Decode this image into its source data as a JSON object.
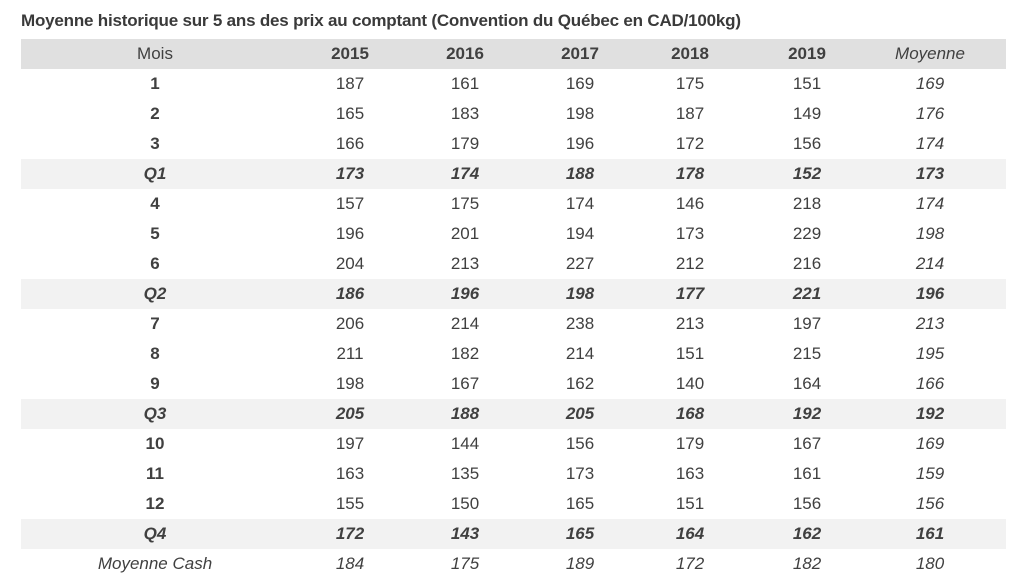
{
  "title": "Moyenne historique sur 5 ans des prix au comptant (Convention du Québec en CAD/100kg)",
  "table": {
    "headers": [
      "Mois",
      "2015",
      "2016",
      "2017",
      "2018",
      "2019",
      "Moyenne"
    ],
    "rows": [
      {
        "type": "month",
        "cells": [
          "1",
          "187",
          "161",
          "169",
          "175",
          "151",
          "169"
        ]
      },
      {
        "type": "month",
        "cells": [
          "2",
          "165",
          "183",
          "198",
          "187",
          "149",
          "176"
        ]
      },
      {
        "type": "month",
        "cells": [
          "3",
          "166",
          "179",
          "196",
          "172",
          "156",
          "174"
        ]
      },
      {
        "type": "quarter",
        "cells": [
          "Q1",
          "173",
          "174",
          "188",
          "178",
          "152",
          "173"
        ]
      },
      {
        "type": "month",
        "cells": [
          "4",
          "157",
          "175",
          "174",
          "146",
          "218",
          "174"
        ]
      },
      {
        "type": "month",
        "cells": [
          "5",
          "196",
          "201",
          "194",
          "173",
          "229",
          "198"
        ]
      },
      {
        "type": "month",
        "cells": [
          "6",
          "204",
          "213",
          "227",
          "212",
          "216",
          "214"
        ]
      },
      {
        "type": "quarter",
        "cells": [
          "Q2",
          "186",
          "196",
          "198",
          "177",
          "221",
          "196"
        ]
      },
      {
        "type": "month",
        "cells": [
          "7",
          "206",
          "214",
          "238",
          "213",
          "197",
          "213"
        ]
      },
      {
        "type": "month",
        "cells": [
          "8",
          "211",
          "182",
          "214",
          "151",
          "215",
          "195"
        ]
      },
      {
        "type": "month",
        "cells": [
          "9",
          "198",
          "167",
          "162",
          "140",
          "164",
          "166"
        ]
      },
      {
        "type": "quarter",
        "cells": [
          "Q3",
          "205",
          "188",
          "205",
          "168",
          "192",
          "192"
        ]
      },
      {
        "type": "month",
        "cells": [
          "10",
          "197",
          "144",
          "156",
          "179",
          "167",
          "169"
        ]
      },
      {
        "type": "month",
        "cells": [
          "11",
          "163",
          "135",
          "173",
          "163",
          "161",
          "159"
        ]
      },
      {
        "type": "month",
        "cells": [
          "12",
          "155",
          "150",
          "165",
          "151",
          "156",
          "156"
        ]
      },
      {
        "type": "quarter",
        "cells": [
          "Q4",
          "172",
          "143",
          "165",
          "164",
          "162",
          "161"
        ]
      },
      {
        "type": "total",
        "cells": [
          "Moyenne Cash",
          "184",
          "175",
          "189",
          "172",
          "182",
          "180"
        ]
      }
    ]
  },
  "colors": {
    "header_bg": "#e0e0e0",
    "quarter_bg": "#f2f2f2",
    "text": "#404040"
  }
}
